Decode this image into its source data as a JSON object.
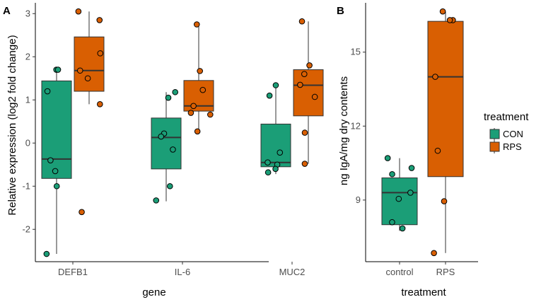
{
  "colors": {
    "CON": "#1b9e77",
    "RPS": "#d95f02",
    "stroke": "#333333",
    "point_stroke": "#000000"
  },
  "panel_a": {
    "label": "A"
  },
  "panel_b": {
    "label": "B"
  },
  "legend": {
    "title": "treatment",
    "items": [
      {
        "key": "CON",
        "label": "CON"
      },
      {
        "key": "RPS",
        "label": "RPS"
      }
    ]
  },
  "chart_data": [
    {
      "type": "box",
      "panel": "A",
      "xlabel": "gene",
      "ylabel": "Relative expression (log2 fold change)",
      "ylim": [
        -2.75,
        3.25
      ],
      "yticks": [
        -2,
        -1,
        0,
        1,
        2,
        3
      ],
      "categories": [
        "DEFB1",
        "IL-6",
        "MUC2"
      ],
      "series": [
        {
          "name": "CON",
          "boxes": [
            {
              "q1": -0.82,
              "median": -0.37,
              "q3": 1.44,
              "whisker_low": -2.57,
              "whisker_high": 1.72,
              "points": [
                1.7,
                1.7,
                1.2,
                -0.4,
                -0.65,
                -1.0,
                -2.57
              ]
            },
            {
              "q1": -0.6,
              "median": 0.13,
              "q3": 0.58,
              "whisker_low": -1.35,
              "whisker_high": 1.18,
              "points": [
                1.18,
                1.05,
                0.22,
                0.15,
                -0.15,
                -1.0,
                -1.33
              ]
            },
            {
              "q1": -0.55,
              "median": -0.45,
              "q3": 0.44,
              "whisker_low": -0.72,
              "whisker_high": 1.32,
              "points": [
                1.34,
                1.1,
                -0.22,
                -0.45,
                -0.5,
                -0.6,
                -0.68
              ]
            }
          ]
        },
        {
          "name": "RPS",
          "boxes": [
            {
              "q1": 1.2,
              "median": 1.68,
              "q3": 2.46,
              "whisker_low": 0.9,
              "whisker_high": 3.05,
              "points": [
                3.05,
                2.85,
                2.08,
                1.68,
                1.5,
                0.9,
                -1.6
              ]
            },
            {
              "q1": 0.74,
              "median": 0.86,
              "q3": 1.45,
              "whisker_low": 0.27,
              "whisker_high": 2.75,
              "points": [
                2.75,
                1.67,
                1.23,
                0.86,
                0.7,
                0.66,
                0.27
              ]
            },
            {
              "q1": 0.63,
              "median": 1.34,
              "q3": 1.7,
              "whisker_low": -0.48,
              "whisker_high": 2.82,
              "points": [
                2.82,
                1.8,
                1.6,
                1.35,
                1.07,
                0.24,
                -0.48
              ]
            }
          ]
        }
      ]
    },
    {
      "type": "box",
      "panel": "B",
      "xlabel": "treatment",
      "ylabel": "ng IgA/mg dry contents",
      "ylim": [
        6.5,
        17.0
      ],
      "yticks": [
        9,
        12,
        15
      ],
      "categories": [
        "control",
        "RPS"
      ],
      "boxes": [
        {
          "category": "control",
          "series": "CON",
          "q1": 8.0,
          "median": 9.3,
          "q3": 9.9,
          "whisker_low": 7.75,
          "whisker_high": 10.7,
          "points": [
            10.7,
            10.3,
            10.05,
            9.3,
            9.05,
            8.1,
            7.85
          ]
        },
        {
          "category": "RPS",
          "series": "RPS",
          "q1": 9.95,
          "median": 14.0,
          "q3": 16.25,
          "whisker_low": 6.85,
          "whisker_high": 16.65,
          "points": [
            16.65,
            16.3,
            16.3,
            14.0,
            11.0,
            8.95,
            6.85
          ]
        }
      ]
    }
  ]
}
